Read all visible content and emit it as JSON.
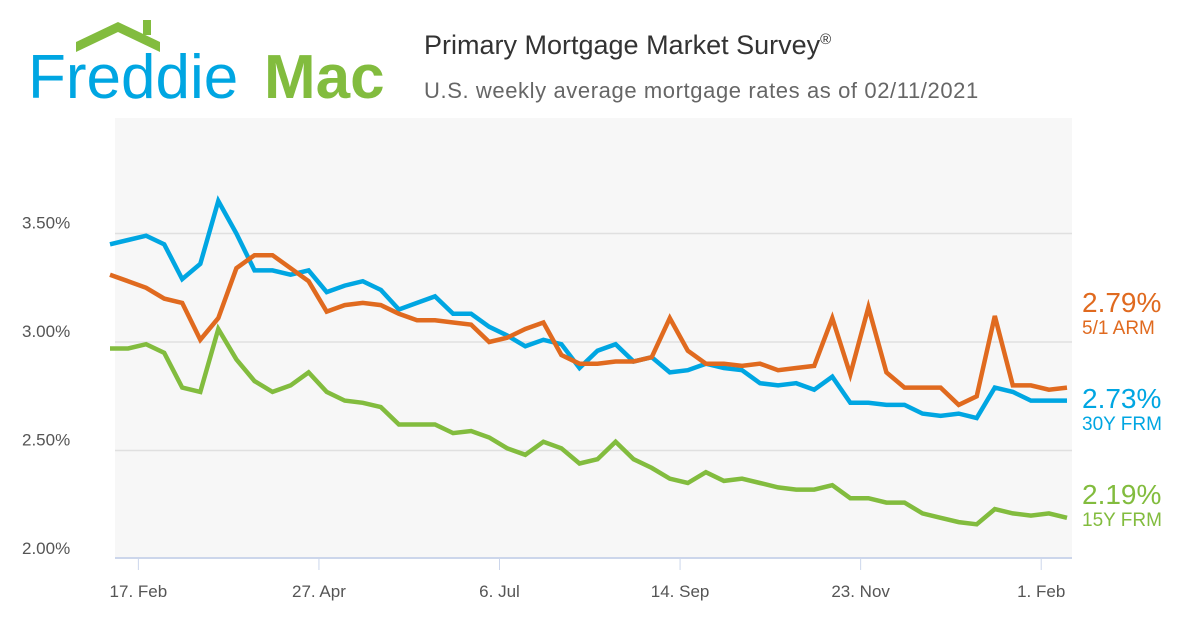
{
  "header": {
    "logo_text_1": "Freddie",
    "logo_text_2": "Mac",
    "title": "Primary Mortgage Market Survey",
    "title_mark": "®",
    "subtitle": "U.S. weekly average mortgage rates as of 02/11/2021"
  },
  "colors": {
    "arm": "#e06a1f",
    "frm30": "#00a6e2",
    "frm15": "#82bc3e",
    "logo_blue": "#00a6e2",
    "logo_green": "#82bc3e",
    "plot_bg": "#f7f7f7"
  },
  "chart_data": {
    "type": "line",
    "title": "Primary Mortgage Market Survey",
    "subtitle": "U.S. weekly average mortgage rates as of 02/11/2021",
    "x_start": "2020-02-06",
    "x_interval": "weekly",
    "x_end": "2021-02-11",
    "x_tick_labels": [
      "17. Feb",
      "27. Apr",
      "6. Jul",
      "14. Sep",
      "23. Nov",
      "1. Feb"
    ],
    "x_tick_dates": [
      "2020-02-17",
      "2020-04-27",
      "2020-07-06",
      "2020-09-14",
      "2020-11-23",
      "2021-02-01"
    ],
    "y_tick_labels": [
      "2.00%",
      "2.50%",
      "3.00%",
      "3.50%"
    ],
    "y_ticks": [
      2.0,
      2.5,
      3.0,
      3.5
    ],
    "ylim": [
      2.0,
      4.0
    ],
    "grid": true,
    "legend": "right end labels",
    "series": [
      {
        "key": "frm30",
        "name": "30Y FRM",
        "last_label": "2.73%",
        "values": [
          3.45,
          3.47,
          3.49,
          3.45,
          3.29,
          3.36,
          3.65,
          3.5,
          3.33,
          3.33,
          3.31,
          3.33,
          3.23,
          3.26,
          3.28,
          3.24,
          3.15,
          3.18,
          3.21,
          3.13,
          3.13,
          3.07,
          3.03,
          2.98,
          3.01,
          2.99,
          2.88,
          2.96,
          2.99,
          2.91,
          2.93,
          2.86,
          2.87,
          2.9,
          2.88,
          2.87,
          2.81,
          2.8,
          2.81,
          2.78,
          2.84,
          2.72,
          2.72,
          2.71,
          2.71,
          2.67,
          2.66,
          2.67,
          2.65,
          2.79,
          2.77,
          2.73,
          2.73,
          2.73
        ]
      },
      {
        "key": "arm",
        "name": "5/1 ARM",
        "last_label": "2.79%",
        "values": [
          3.31,
          3.28,
          3.25,
          3.2,
          3.18,
          3.01,
          3.11,
          3.34,
          3.4,
          3.4,
          3.34,
          3.28,
          3.14,
          3.17,
          3.18,
          3.17,
          3.13,
          3.1,
          3.1,
          3.09,
          3.08,
          3.0,
          3.02,
          3.06,
          3.09,
          2.94,
          2.9,
          2.9,
          2.91,
          2.91,
          2.93,
          3.11,
          2.96,
          2.9,
          2.9,
          2.89,
          2.9,
          2.87,
          2.88,
          2.89,
          3.11,
          2.85,
          3.16,
          2.86,
          2.79,
          2.79,
          2.79,
          2.71,
          2.75,
          3.12,
          2.8,
          2.8,
          2.78,
          2.79
        ]
      },
      {
        "key": "frm15",
        "name": "15Y FRM",
        "last_label": "2.19%",
        "values": [
          2.97,
          2.97,
          2.99,
          2.95,
          2.79,
          2.77,
          3.06,
          2.92,
          2.82,
          2.77,
          2.8,
          2.86,
          2.77,
          2.73,
          2.72,
          2.7,
          2.62,
          2.62,
          2.62,
          2.58,
          2.59,
          2.56,
          2.51,
          2.48,
          2.54,
          2.51,
          2.44,
          2.46,
          2.54,
          2.46,
          2.42,
          2.37,
          2.35,
          2.4,
          2.36,
          2.37,
          2.35,
          2.33,
          2.32,
          2.32,
          2.34,
          2.28,
          2.28,
          2.26,
          2.26,
          2.21,
          2.19,
          2.17,
          2.16,
          2.23,
          2.21,
          2.2,
          2.21,
          2.19
        ]
      }
    ]
  }
}
